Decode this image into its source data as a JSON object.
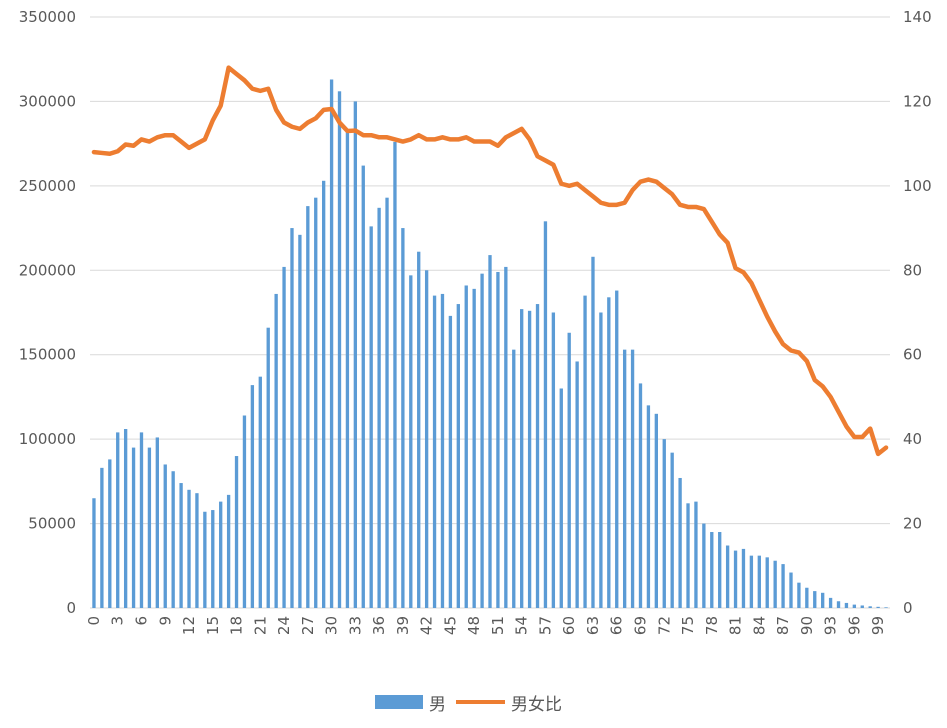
{
  "chart_data": {
    "type": "bar+line",
    "title": "",
    "grid": true,
    "legend_position": "bottom",
    "colors": {
      "bar": "#5b9bd5",
      "line": "#ed7d31",
      "grid": "#d9d9d9",
      "text": "#595959"
    },
    "y_left": {
      "min": 0,
      "max": 350000,
      "ticks": [
        "0",
        "50000",
        "100000",
        "150000",
        "200000",
        "250000",
        "300000",
        "350000"
      ]
    },
    "y_right": {
      "min": 0,
      "max": 140,
      "ticks": [
        "0",
        "20",
        "40",
        "60",
        "80",
        "100",
        "120",
        "140"
      ]
    },
    "x_tick_labels": [
      "0",
      "3",
      "6",
      "9",
      "12",
      "15",
      "18",
      "21",
      "24",
      "27",
      "30",
      "33",
      "36",
      "39",
      "42",
      "45",
      "48",
      "51",
      "54",
      "57",
      "60",
      "63",
      "66",
      "69",
      "72",
      "75",
      "78",
      "81",
      "84",
      "87",
      "90",
      "93",
      "96",
      "99"
    ],
    "ages": [
      0,
      1,
      2,
      3,
      4,
      5,
      6,
      7,
      8,
      9,
      10,
      11,
      12,
      13,
      14,
      15,
      16,
      17,
      18,
      19,
      20,
      21,
      22,
      23,
      24,
      25,
      26,
      27,
      28,
      29,
      30,
      31,
      32,
      33,
      34,
      35,
      36,
      37,
      38,
      39,
      40,
      41,
      42,
      43,
      44,
      45,
      46,
      47,
      48,
      49,
      50,
      51,
      52,
      53,
      54,
      55,
      56,
      57,
      58,
      59,
      60,
      61,
      62,
      63,
      64,
      65,
      66,
      67,
      68,
      69,
      70,
      71,
      72,
      73,
      74,
      75,
      76,
      77,
      78,
      79,
      80,
      81,
      82,
      83,
      84,
      85,
      86,
      87,
      88,
      89,
      90,
      91,
      92,
      93,
      94,
      95,
      96,
      97,
      98,
      99,
      100
    ],
    "series": [
      {
        "name": "男",
        "type": "bar",
        "axis": "left",
        "values": [
          65000,
          83000,
          88000,
          104000,
          106000,
          95000,
          104000,
          95000,
          101000,
          85000,
          81000,
          74000,
          70000,
          68000,
          57000,
          58000,
          63000,
          67000,
          90000,
          114000,
          132000,
          137000,
          166000,
          186000,
          202000,
          225000,
          221000,
          238000,
          243000,
          253000,
          313000,
          306000,
          283000,
          300000,
          262000,
          226000,
          237000,
          243000,
          276000,
          225000,
          197000,
          211000,
          200000,
          185000,
          186000,
          173000,
          180000,
          191000,
          189000,
          198000,
          209000,
          199000,
          202000,
          153000,
          177000,
          176000,
          180000,
          229000,
          175000,
          130000,
          163000,
          146000,
          185000,
          208000,
          175000,
          184000,
          188000,
          153000,
          153000,
          133000,
          120000,
          115000,
          100000,
          92000,
          77000,
          62000,
          63000,
          50000,
          45000,
          45000,
          37000,
          34000,
          35000,
          31000,
          31000,
          30000,
          28000,
          26000,
          21000,
          15000,
          12000,
          10000,
          9000,
          6000,
          4000,
          3000,
          2000,
          1500,
          1000,
          700,
          400
        ]
      },
      {
        "name": "男女比",
        "type": "line",
        "axis": "right",
        "values": [
          108,
          107.8,
          107.6,
          108.2,
          109.8,
          109.5,
          111,
          110.5,
          111.5,
          112,
          112,
          110.5,
          109,
          110,
          111,
          115.5,
          119,
          128,
          126.5,
          125,
          123,
          122.5,
          123,
          118,
          115,
          114,
          113.5,
          115,
          116,
          118,
          118.2,
          115,
          113,
          113.1,
          112,
          112,
          111.5,
          111.5,
          111,
          110.5,
          111,
          112,
          111,
          111,
          111.5,
          111,
          111,
          111.5,
          110.5,
          110.5,
          110.5,
          109.5,
          111.5,
          112.5,
          113.5,
          111,
          107,
          106,
          105,
          100.5,
          100,
          100.5,
          99,
          97.5,
          96,
          95.5,
          95.5,
          96,
          99,
          101,
          101.5,
          101,
          99.5,
          98,
          95.5,
          95,
          95,
          94.5,
          91.5,
          88.5,
          86.5,
          80.5,
          79.5,
          77,
          73,
          69,
          65.5,
          62.5,
          61,
          60.5,
          58.5,
          54,
          52.5,
          50,
          46.5,
          43,
          40.5,
          40.5,
          42.5,
          36.5,
          38
        ]
      }
    ]
  }
}
